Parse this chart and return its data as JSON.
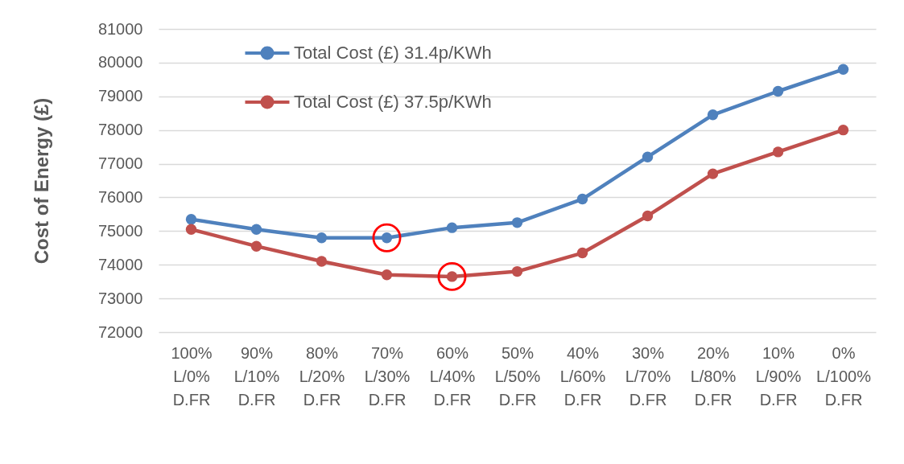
{
  "chart_data": {
    "type": "line",
    "ylabel": "Cost of Energy (£)",
    "categories": [
      "100%\nL/0%\nD.FR",
      "90%\nL/10%\nD.FR",
      "80%\nL/20%\nD.FR",
      "70%\nL/30%\nD.FR",
      "60%\nL/40%\nD.FR",
      "50%\nL/50%\nD.FR",
      "40%\nL/60%\nD.FR",
      "30%\nL/70%\nD.FR",
      "20%\nL/80%\nD.FR",
      "10%\nL/90%\nD.FR",
      "0%\nL/100%\nD.FR"
    ],
    "series": [
      {
        "name": "Total Cost (£) 31.4p/KWh",
        "color": "#4f81bd",
        "values": [
          75350,
          75050,
          74800,
          74800,
          75100,
          75250,
          75950,
          77200,
          78450,
          79150,
          79800
        ]
      },
      {
        "name": "Total Cost (£) 37.5p/KWh",
        "color": "#c0504d",
        "values": [
          75050,
          74550,
          74100,
          73700,
          73650,
          73800,
          74350,
          75450,
          76700,
          77350,
          78000
        ]
      },
      {
        "type": "scatter",
        "color": "#ff0000",
        "values": [
          null,
          null,
          null,
          74800,
          73650,
          null,
          null,
          null,
          null,
          null,
          null
        ]
      }
    ],
    "ylim": [
      72000,
      81000
    ],
    "yticks": [
      72000,
      73000,
      74000,
      75000,
      76000,
      77000,
      78000,
      79000,
      80000,
      81000
    ],
    "grid": "y",
    "legend": "top left",
    "marker": "circle",
    "line_style": "solid"
  }
}
